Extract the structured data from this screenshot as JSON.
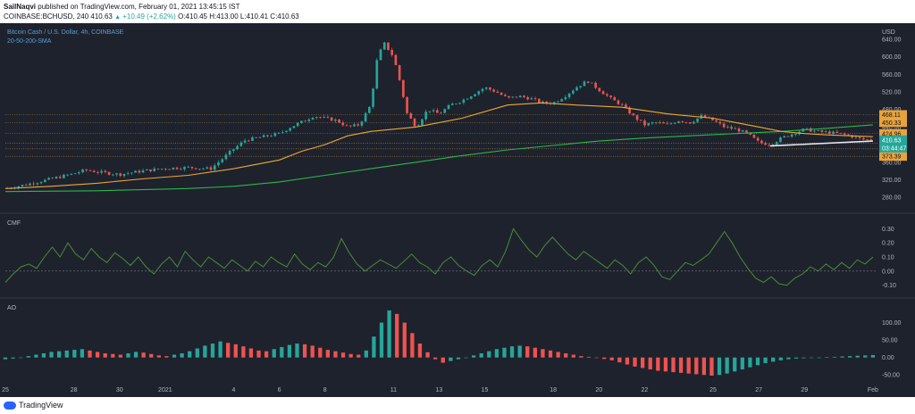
{
  "header": {
    "publisher": "SailNaqvi",
    "published_text": "published on TradingView.com, February 01, 2021 13:45:15 IST",
    "symbol_line": "COINBASE:BCHUSD, 240",
    "last": "410.63",
    "change": "+10.49 (+2.62%)",
    "ohlc": "O:410.45 H:413.00 L:410.41 C:410.63"
  },
  "footer": {
    "brand": "TradingView"
  },
  "chart_data": {
    "type": "candlestick",
    "title": "Bitcoin Cash / U.S. Dollar, 4h, COINBASE",
    "indicator_label": "20-50-200-SMA",
    "currency": "USD",
    "price_axis_ticks": [
      640,
      600,
      560,
      520,
      480,
      440,
      400,
      360,
      320,
      280
    ],
    "price_range": [
      260,
      660
    ],
    "x_labels": [
      "25",
      "28",
      "30",
      "2021",
      "4",
      "6",
      "8",
      "11",
      "13",
      "15",
      "18",
      "20",
      "22",
      "25",
      "27",
      "29",
      "Feb"
    ],
    "x_label_days": [
      0,
      3,
      5,
      7,
      10,
      12,
      14,
      17,
      19,
      21,
      24,
      26,
      28,
      31,
      33,
      35,
      38
    ],
    "day_range": [
      0,
      38.2
    ],
    "horizontal_levels": [
      468.11,
      450.33,
      424.96,
      403.48,
      390.32,
      373.39
    ],
    "last_price_label": "410.63",
    "countdown": "03:44:47",
    "keypoints": [
      [
        0,
        300
      ],
      [
        1,
        310
      ],
      [
        2,
        322
      ],
      [
        3,
        334
      ],
      [
        3.5,
        342
      ],
      [
        4,
        338
      ],
      [
        5,
        332
      ],
      [
        6,
        340
      ],
      [
        7,
        346
      ],
      [
        8,
        348
      ],
      [
        9,
        345
      ],
      [
        10,
        390
      ],
      [
        10.5,
        410
      ],
      [
        11,
        415
      ],
      [
        11.5,
        420
      ],
      [
        12,
        425
      ],
      [
        12.5,
        440
      ],
      [
        13,
        452
      ],
      [
        13.5,
        465
      ],
      [
        14,
        460
      ],
      [
        14.5,
        455
      ],
      [
        15,
        440
      ],
      [
        15.5,
        445
      ],
      [
        16,
        490
      ],
      [
        16.3,
        600
      ],
      [
        16.6,
        630
      ],
      [
        17,
        600
      ],
      [
        17.3,
        540
      ],
      [
        17.6,
        470
      ],
      [
        18,
        440
      ],
      [
        18.5,
        480
      ],
      [
        19,
        470
      ],
      [
        19.5,
        490
      ],
      [
        20,
        500
      ],
      [
        20.5,
        515
      ],
      [
        21,
        530
      ],
      [
        21.5,
        520
      ],
      [
        22,
        505
      ],
      [
        22.5,
        510
      ],
      [
        23,
        505
      ],
      [
        23.5,
        495
      ],
      [
        24,
        495
      ],
      [
        24.5,
        510
      ],
      [
        25,
        530
      ],
      [
        25.5,
        545
      ],
      [
        26,
        525
      ],
      [
        26.5,
        505
      ],
      [
        27,
        490
      ],
      [
        27.5,
        465
      ],
      [
        28,
        445
      ],
      [
        28.5,
        450
      ],
      [
        29,
        445
      ],
      [
        29.5,
        455
      ],
      [
        30,
        450
      ],
      [
        30.5,
        465
      ],
      [
        31,
        455
      ],
      [
        31.5,
        440
      ],
      [
        32,
        435
      ],
      [
        32.5,
        425
      ],
      [
        33,
        405
      ],
      [
        33.5,
        400
      ],
      [
        34,
        415
      ],
      [
        34.5,
        425
      ],
      [
        35,
        435
      ],
      [
        35.5,
        430
      ],
      [
        36,
        428
      ],
      [
        36.5,
        425
      ],
      [
        37,
        420
      ],
      [
        37.5,
        412
      ],
      [
        38,
        410.6
      ]
    ],
    "sma50": [
      [
        0,
        300
      ],
      [
        2,
        305
      ],
      [
        4,
        312
      ],
      [
        6,
        322
      ],
      [
        8,
        330
      ],
      [
        10,
        345
      ],
      [
        12,
        365
      ],
      [
        13,
        385
      ],
      [
        14,
        400
      ],
      [
        15,
        420
      ],
      [
        16,
        430
      ],
      [
        18,
        440
      ],
      [
        20,
        460
      ],
      [
        22,
        490
      ],
      [
        23.5,
        495
      ],
      [
        25,
        490
      ],
      [
        27,
        485
      ],
      [
        29,
        470
      ],
      [
        31,
        460
      ],
      [
        32,
        450
      ],
      [
        33,
        440
      ],
      [
        34,
        430
      ],
      [
        35,
        425
      ],
      [
        36,
        422
      ],
      [
        37,
        420
      ],
      [
        38,
        418
      ]
    ],
    "sma200": [
      [
        0,
        293
      ],
      [
        4,
        295
      ],
      [
        8,
        300
      ],
      [
        10,
        305
      ],
      [
        12,
        315
      ],
      [
        14,
        330
      ],
      [
        16,
        345
      ],
      [
        18,
        360
      ],
      [
        20,
        375
      ],
      [
        22,
        388
      ],
      [
        24,
        398
      ],
      [
        26,
        408
      ],
      [
        28,
        415
      ],
      [
        30,
        420
      ],
      [
        32,
        425
      ],
      [
        34,
        430
      ],
      [
        36,
        437
      ],
      [
        38,
        445
      ]
    ],
    "trendline": [
      [
        33.5,
        397
      ],
      [
        38,
        408
      ]
    ],
    "cmf": {
      "label": "CMF",
      "ticks": [
        0.3,
        0.2,
        0.1,
        0,
        -0.1
      ],
      "range": [
        -0.14,
        0.34
      ],
      "values": [
        -0.08,
        -0.02,
        0.03,
        0.05,
        0.02,
        0.1,
        0.17,
        0.1,
        0.2,
        0.12,
        0.08,
        0.16,
        0.1,
        0.06,
        0.13,
        0.09,
        0.04,
        0.1,
        0.03,
        -0.02,
        0.05,
        0.1,
        0.03,
        0.14,
        0.08,
        0.03,
        0.1,
        0.06,
        0.02,
        0.08,
        0.04,
        0.0,
        0.07,
        0.03,
        0.1,
        0.06,
        0.03,
        0.12,
        0.05,
        0.01,
        0.06,
        0.03,
        0.1,
        0.23,
        0.13,
        0.05,
        0.0,
        0.04,
        0.08,
        0.05,
        0.02,
        0.07,
        0.12,
        0.06,
        0.03,
        -0.02,
        0.06,
        0.1,
        0.04,
        0.0,
        -0.03,
        0.04,
        0.08,
        0.03,
        0.14,
        0.3,
        0.22,
        0.15,
        0.1,
        0.18,
        0.24,
        0.18,
        0.12,
        0.08,
        0.14,
        0.1,
        0.06,
        0.02,
        0.08,
        0.04,
        -0.02,
        0.06,
        0.1,
        0.04,
        -0.04,
        -0.06,
        0.0,
        0.06,
        0.04,
        0.08,
        0.12,
        0.2,
        0.28,
        0.2,
        0.1,
        0.02,
        -0.05,
        -0.08,
        -0.04,
        -0.09,
        -0.1,
        -0.05,
        -0.02,
        0.03,
        0.0,
        0.05,
        0.01,
        0.06,
        0.02,
        0.08,
        0.05,
        0.1
      ]
    },
    "ao": {
      "label": "AO",
      "ticks": [
        100,
        50,
        0,
        -50
      ],
      "range": [
        -75,
        145
      ],
      "values": [
        -5,
        -3,
        0,
        4,
        8,
        12,
        16,
        18,
        20,
        22,
        24,
        20,
        16,
        12,
        10,
        8,
        12,
        16,
        14,
        10,
        6,
        4,
        8,
        12,
        18,
        26,
        34,
        40,
        46,
        42,
        38,
        32,
        26,
        20,
        18,
        24,
        30,
        36,
        40,
        38,
        34,
        28,
        22,
        18,
        14,
        10,
        8,
        20,
        60,
        100,
        135,
        125,
        100,
        70,
        40,
        15,
        -5,
        -15,
        -10,
        -5,
        0,
        6,
        12,
        18,
        24,
        28,
        32,
        34,
        32,
        28,
        24,
        20,
        16,
        12,
        8,
        4,
        2,
        0,
        -4,
        -8,
        -14,
        -20,
        -26,
        -30,
        -34,
        -38,
        -40,
        -42,
        -44,
        -46,
        -48,
        -50,
        -52,
        -50,
        -46,
        -40,
        -34,
        -28,
        -22,
        -16,
        -12,
        -8,
        -5,
        -3,
        -2,
        -1,
        0,
        1,
        2,
        3,
        4,
        5,
        6,
        7
      ]
    }
  },
  "colors": {
    "background": "#1e222d",
    "up": "#26a69a",
    "down": "#ef5350",
    "sma50": "#f0a830",
    "sma200": "#2bb84a",
    "level": "#e8a33a",
    "last_price": "#26a69a",
    "cmf_line": "#4c8a3a",
    "axis_text": "#b2b5be",
    "legend_title": "#5a9fd4"
  }
}
